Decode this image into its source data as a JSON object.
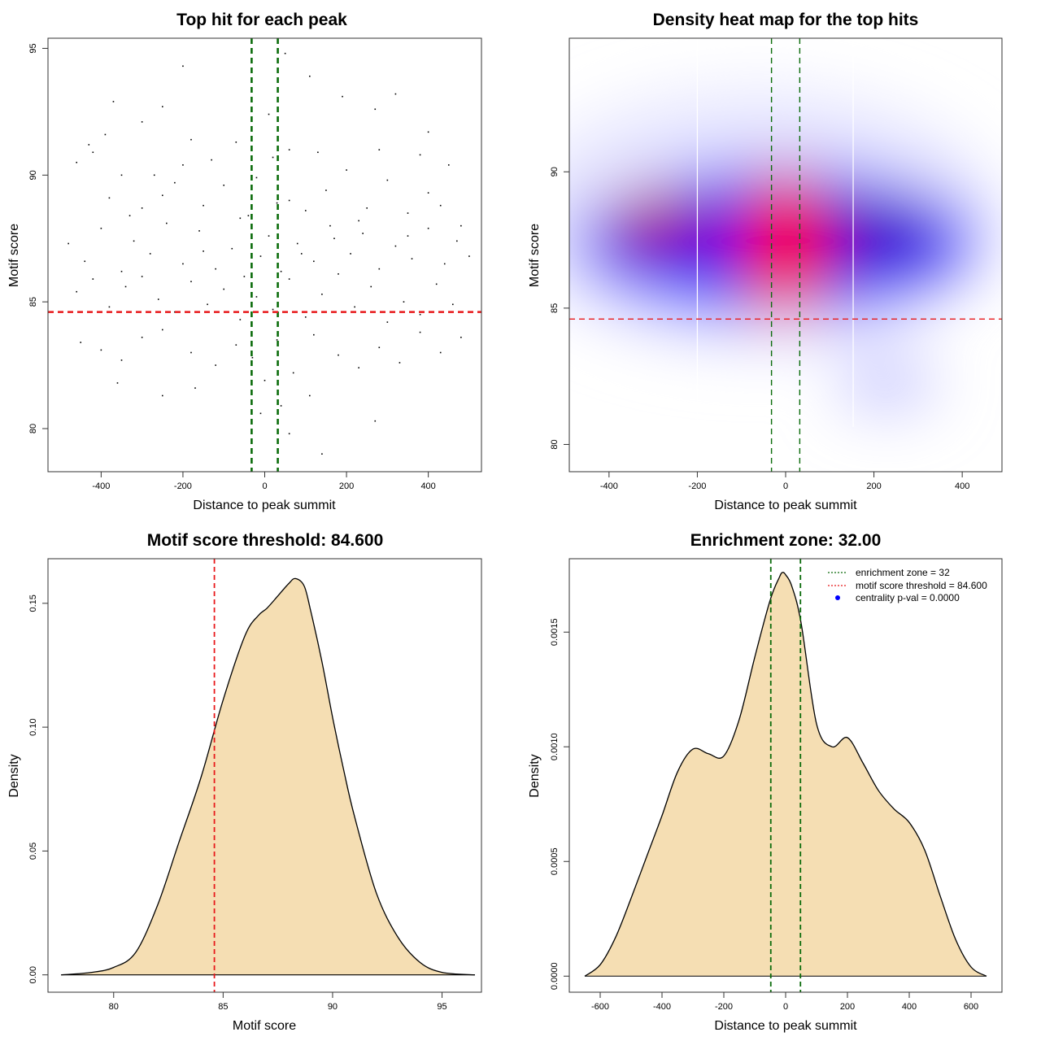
{
  "chart_data": [
    {
      "type": "scatter",
      "title": "Top hit for each peak",
      "xlabel": "Distance to peak summit",
      "ylabel": "Motif score",
      "xlim": [
        -530,
        530
      ],
      "ylim": [
        78.3,
        95.4
      ],
      "x_ticks": [
        -400,
        -200,
        0,
        200,
        400
      ],
      "x_tick_labels": [
        "-400",
        "-200",
        "0",
        "200",
        "400"
      ],
      "y_ticks": [
        80,
        85,
        90,
        95
      ],
      "y_tick_labels": [
        "80",
        "85",
        "90",
        "95"
      ],
      "hlines": [
        {
          "value": 84.6,
          "color": "#e8191b",
          "style": "dashed"
        }
      ],
      "vlines": [
        {
          "value": -32,
          "color": "#0a6b0a",
          "style": "dashed"
        },
        {
          "value": 32,
          "color": "#0a6b0a",
          "style": "dashed"
        }
      ],
      "points": [
        [
          -300,
          92.1
        ],
        [
          -200,
          94.3
        ],
        [
          50,
          94.8
        ],
        [
          110,
          93.9
        ],
        [
          -370,
          92.9
        ],
        [
          320,
          93.2
        ],
        [
          190,
          93.1
        ],
        [
          270,
          92.6
        ],
        [
          -250,
          92.7
        ],
        [
          -430,
          91.2
        ],
        [
          -180,
          91.4
        ],
        [
          400,
          91.7
        ],
        [
          -460,
          90.5
        ],
        [
          -420,
          90.9
        ],
        [
          -380,
          89.1
        ],
        [
          -350,
          90.0
        ],
        [
          -300,
          88.7
        ],
        [
          -250,
          89.2
        ],
        [
          -200,
          90.4
        ],
        [
          -150,
          88.8
        ],
        [
          -100,
          89.6
        ],
        [
          -60,
          88.3
        ],
        [
          -20,
          89.9
        ],
        [
          20,
          90.7
        ],
        [
          60,
          89.0
        ],
        [
          100,
          88.6
        ],
        [
          150,
          89.4
        ],
        [
          200,
          90.2
        ],
        [
          250,
          88.7
        ],
        [
          300,
          89.8
        ],
        [
          350,
          88.5
        ],
        [
          400,
          89.3
        ],
        [
          450,
          90.4
        ],
        [
          480,
          88.0
        ],
        [
          -480,
          87.3
        ],
        [
          -440,
          86.6
        ],
        [
          -400,
          87.9
        ],
        [
          -350,
          86.2
        ],
        [
          -320,
          87.4
        ],
        [
          -280,
          86.9
        ],
        [
          -240,
          88.1
        ],
        [
          -200,
          86.5
        ],
        [
          -160,
          87.8
        ],
        [
          -120,
          86.3
        ],
        [
          -80,
          87.1
        ],
        [
          -40,
          88.4
        ],
        [
          -10,
          86.8
        ],
        [
          10,
          87.6
        ],
        [
          40,
          86.2
        ],
        [
          80,
          87.3
        ],
        [
          120,
          86.6
        ],
        [
          160,
          88.0
        ],
        [
          210,
          86.9
        ],
        [
          240,
          87.7
        ],
        [
          280,
          86.3
        ],
        [
          320,
          87.2
        ],
        [
          360,
          86.7
        ],
        [
          400,
          87.9
        ],
        [
          440,
          86.5
        ],
        [
          470,
          87.4
        ],
        [
          -460,
          85.4
        ],
        [
          -420,
          85.9
        ],
        [
          -380,
          84.8
        ],
        [
          -340,
          85.6
        ],
        [
          -300,
          86.0
        ],
        [
          -260,
          85.1
        ],
        [
          -220,
          84.6
        ],
        [
          -180,
          85.8
        ],
        [
          -140,
          84.9
        ],
        [
          -100,
          85.5
        ],
        [
          -60,
          84.3
        ],
        [
          -20,
          85.2
        ],
        [
          20,
          84.7
        ],
        [
          60,
          85.9
        ],
        [
          100,
          84.4
        ],
        [
          140,
          85.3
        ],
        [
          180,
          86.1
        ],
        [
          220,
          84.8
        ],
        [
          260,
          85.6
        ],
        [
          300,
          84.2
        ],
        [
          340,
          85.0
        ],
        [
          380,
          84.5
        ],
        [
          420,
          85.7
        ],
        [
          460,
          84.9
        ],
        [
          -450,
          83.4
        ],
        [
          -400,
          83.1
        ],
        [
          -350,
          82.7
        ],
        [
          -300,
          83.6
        ],
        [
          -250,
          83.9
        ],
        [
          -180,
          83.0
        ],
        [
          -120,
          82.5
        ],
        [
          -70,
          83.3
        ],
        [
          -30,
          82.8
        ],
        [
          30,
          83.5
        ],
        [
          70,
          82.2
        ],
        [
          120,
          83.7
        ],
        [
          180,
          82.9
        ],
        [
          230,
          82.4
        ],
        [
          280,
          83.2
        ],
        [
          330,
          82.6
        ],
        [
          380,
          83.8
        ],
        [
          430,
          83.0
        ],
        [
          480,
          83.6
        ],
        [
          -360,
          81.8
        ],
        [
          -250,
          81.3
        ],
        [
          -170,
          81.6
        ],
        [
          0,
          81.9
        ],
        [
          40,
          80.9
        ],
        [
          110,
          81.3
        ],
        [
          270,
          80.3
        ],
        [
          60,
          79.8
        ],
        [
          140,
          79.0
        ],
        [
          -10,
          80.6
        ],
        [
          -220,
          89.7
        ],
        [
          -130,
          90.6
        ],
        [
          -70,
          91.3
        ],
        [
          10,
          92.4
        ],
        [
          60,
          91.0
        ],
        [
          130,
          90.9
        ],
        [
          280,
          91.0
        ],
        [
          380,
          90.8
        ],
        [
          -390,
          91.6
        ],
        [
          -330,
          88.4
        ],
        [
          -270,
          90.0
        ],
        [
          -150,
          87.0
        ],
        [
          -50,
          86.0
        ],
        [
          30,
          88.9
        ],
        [
          90,
          86.9
        ],
        [
          170,
          87.5
        ],
        [
          230,
          88.2
        ],
        [
          350,
          87.6
        ],
        [
          430,
          88.8
        ],
        [
          500,
          86.8
        ]
      ],
      "point_color": "#000000"
    },
    {
      "type": "heatmap",
      "title": "Density heat map for the top hits",
      "xlabel": "Distance to peak summit",
      "ylabel": "Motif score",
      "xlim": [
        -490,
        490
      ],
      "ylim": [
        79.0,
        94.9
      ],
      "x_ticks": [
        -400,
        -200,
        0,
        200,
        400
      ],
      "x_tick_labels": [
        "-400",
        "-200",
        "0",
        "200",
        "400"
      ],
      "y_ticks": [
        80,
        85,
        90
      ],
      "y_tick_labels": [
        "80",
        "85",
        "90"
      ],
      "hlines": [
        {
          "value": 84.6,
          "color": "#e8191b",
          "style": "dashed"
        }
      ],
      "vlines": [
        {
          "value": -32,
          "color": "#0a6b0a",
          "style": "dashed"
        },
        {
          "value": 32,
          "color": "#0a6b0a",
          "style": "dashed"
        }
      ],
      "white_vlines": [
        -200,
        153
      ],
      "color_scale": [
        "#ffffff",
        "#0000ff",
        "#ff0000"
      ],
      "density_peaks": [
        {
          "x": -10,
          "y": 87.5,
          "level": "high"
        },
        {
          "x": -270,
          "y": 88.0,
          "level": "medium"
        },
        {
          "x": 150,
          "y": 87.8,
          "level": "medium"
        }
      ]
    },
    {
      "type": "area",
      "title": "Motif score threshold: 84.600",
      "xlabel": "Motif score",
      "ylabel": "Density",
      "xlim": [
        77.0,
        96.8
      ],
      "ylim": [
        -0.007,
        0.168
      ],
      "x_ticks": [
        80,
        85,
        90,
        95
      ],
      "x_tick_labels": [
        "80",
        "85",
        "90",
        "95"
      ],
      "y_ticks": [
        0.0,
        0.05,
        0.1,
        0.15
      ],
      "y_tick_labels": [
        "0.00",
        "0.05",
        "0.10",
        "0.15"
      ],
      "fill": "#f5deb3",
      "x": [
        77.6,
        79.0,
        80.0,
        81.0,
        82.0,
        83.0,
        84.0,
        85.0,
        86.0,
        86.6,
        87.0,
        87.5,
        88.0,
        88.3,
        88.7,
        89.0,
        89.5,
        90.0,
        90.5,
        91.0,
        92.0,
        93.0,
        94.0,
        95.0,
        96.5
      ],
      "y": [
        0.0,
        0.001,
        0.003,
        0.009,
        0.028,
        0.054,
        0.08,
        0.111,
        0.137,
        0.145,
        0.148,
        0.153,
        0.158,
        0.16,
        0.157,
        0.147,
        0.127,
        0.104,
        0.083,
        0.064,
        0.033,
        0.015,
        0.005,
        0.001,
        0.0
      ]
    },
    {
      "type": "area",
      "title": "Enrichment zone: 32.00",
      "xlabel": "Distance to peak summit",
      "ylabel": "Density",
      "xlim": [
        -700,
        700
      ],
      "ylim": [
        -7e-05,
        0.00182
      ],
      "x_ticks": [
        -600,
        -400,
        -200,
        0,
        200,
        400,
        600
      ],
      "x_tick_labels": [
        "-600",
        "-400",
        "-200",
        "0",
        "200",
        "400",
        "600"
      ],
      "y_ticks": [
        0.0,
        0.0005,
        0.001,
        0.0015
      ],
      "y_tick_labels": [
        "0.0000",
        "0.0005",
        "0.0010",
        "0.0015"
      ],
      "fill": "#f5deb3",
      "x": [
        -650,
        -600,
        -550,
        -500,
        -450,
        -400,
        -350,
        -300,
        -250,
        -200,
        -150,
        -100,
        -50,
        -20,
        -10,
        0,
        20,
        50,
        100,
        150,
        200,
        250,
        300,
        350,
        400,
        450,
        500,
        550,
        600,
        650
      ],
      "y": [
        0.0,
        5e-05,
        0.00017,
        0.00034,
        0.00052,
        0.0007,
        0.00089,
        0.00099,
        0.00097,
        0.00096,
        0.00112,
        0.00139,
        0.00164,
        0.00174,
        0.00176,
        0.00175,
        0.0017,
        0.00154,
        0.0011,
        0.001,
        0.00104,
        0.00093,
        0.00081,
        0.00073,
        0.00067,
        0.00055,
        0.00035,
        0.00016,
        4e-05,
        0.0
      ]
    }
  ],
  "legend": {
    "entries": [
      {
        "label": "enrichment zone = 32",
        "color": "#0a6b0a",
        "kind": "dotted-line"
      },
      {
        "label": "motif score threshold = 84.600",
        "color": "#e8191b",
        "kind": "dotted-line"
      },
      {
        "label": "centrality p-val = 0.0000",
        "color": "#0000ff",
        "kind": "point"
      }
    ]
  }
}
